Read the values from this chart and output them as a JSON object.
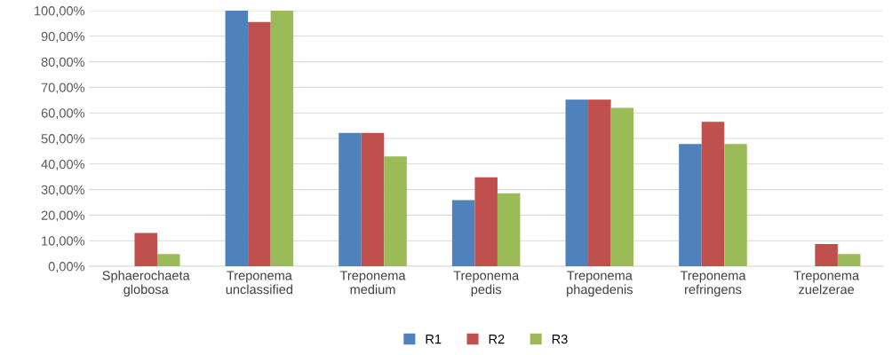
{
  "chart_data": {
    "type": "bar",
    "categories": [
      "Sphaerochaeta\nglobosa",
      "Treponema\nunclassified",
      "Treponema\nmedium",
      "Treponema\npedis",
      "Treponema\nphagedenis",
      "Treponema\nrefringens",
      "Treponema\nzuelzerae"
    ],
    "series": [
      {
        "name": "R1",
        "color": "#4f81bd",
        "values": [
          0,
          100,
          52.2,
          25.9,
          65.2,
          47.8,
          0
        ]
      },
      {
        "name": "R2",
        "color": "#c0504d",
        "values": [
          13,
          95.6,
          52.2,
          34.8,
          65.2,
          56.5,
          8.7
        ]
      },
      {
        "name": "R3",
        "color": "#9bbb59",
        "values": [
          4.8,
          100,
          43,
          28.6,
          62,
          47.8,
          4.8
        ]
      }
    ],
    "ylim": [
      0,
      100
    ],
    "yticks": [
      {
        "value": 0,
        "label": "0,00%"
      },
      {
        "value": 10,
        "label": "10,00%"
      },
      {
        "value": 20,
        "label": "20,00%"
      },
      {
        "value": 30,
        "label": "30,00%"
      },
      {
        "value": 40,
        "label": "40,00%"
      },
      {
        "value": 50,
        "label": "50,00%"
      },
      {
        "value": 60,
        "label": "60,00%"
      },
      {
        "value": 70,
        "label": "70,00%"
      },
      {
        "value": 80,
        "label": "80,00%"
      },
      {
        "value": 90,
        "label": "90,00%"
      },
      {
        "value": 100,
        "label": "100,00%"
      }
    ],
    "grid": "y",
    "legend": "bottom"
  }
}
